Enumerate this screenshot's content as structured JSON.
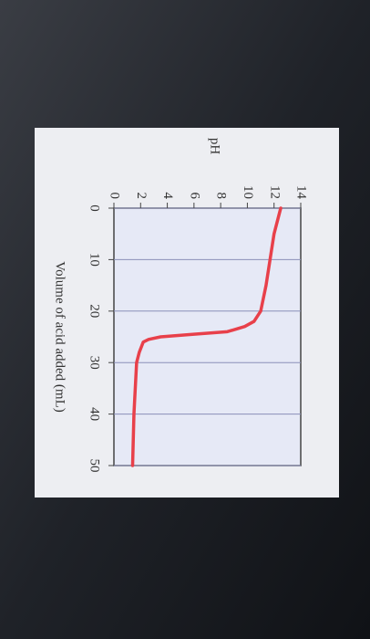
{
  "chart_data": {
    "type": "line",
    "x_label": "Volume of acid added (mL)",
    "y_label": "pH",
    "x": [
      0,
      5,
      10,
      15,
      20,
      22,
      23,
      24,
      24.5,
      25,
      25.5,
      26,
      28,
      30,
      40,
      50
    ],
    "series": [
      {
        "color": "#e8404a",
        "values": [
          12.5,
          12.0,
          11.7,
          11.4,
          11.0,
          10.5,
          9.8,
          8.5,
          6.0,
          3.5,
          2.6,
          2.2,
          1.9,
          1.7,
          1.5,
          1.4
        ]
      }
    ],
    "xlim": [
      0,
      50
    ],
    "xticks": [
      0,
      10,
      20,
      30,
      40,
      50
    ],
    "ylim": [
      0,
      14
    ],
    "yticks": [
      0,
      2,
      4,
      6,
      8,
      10,
      12,
      14
    ],
    "grid": true
  }
}
